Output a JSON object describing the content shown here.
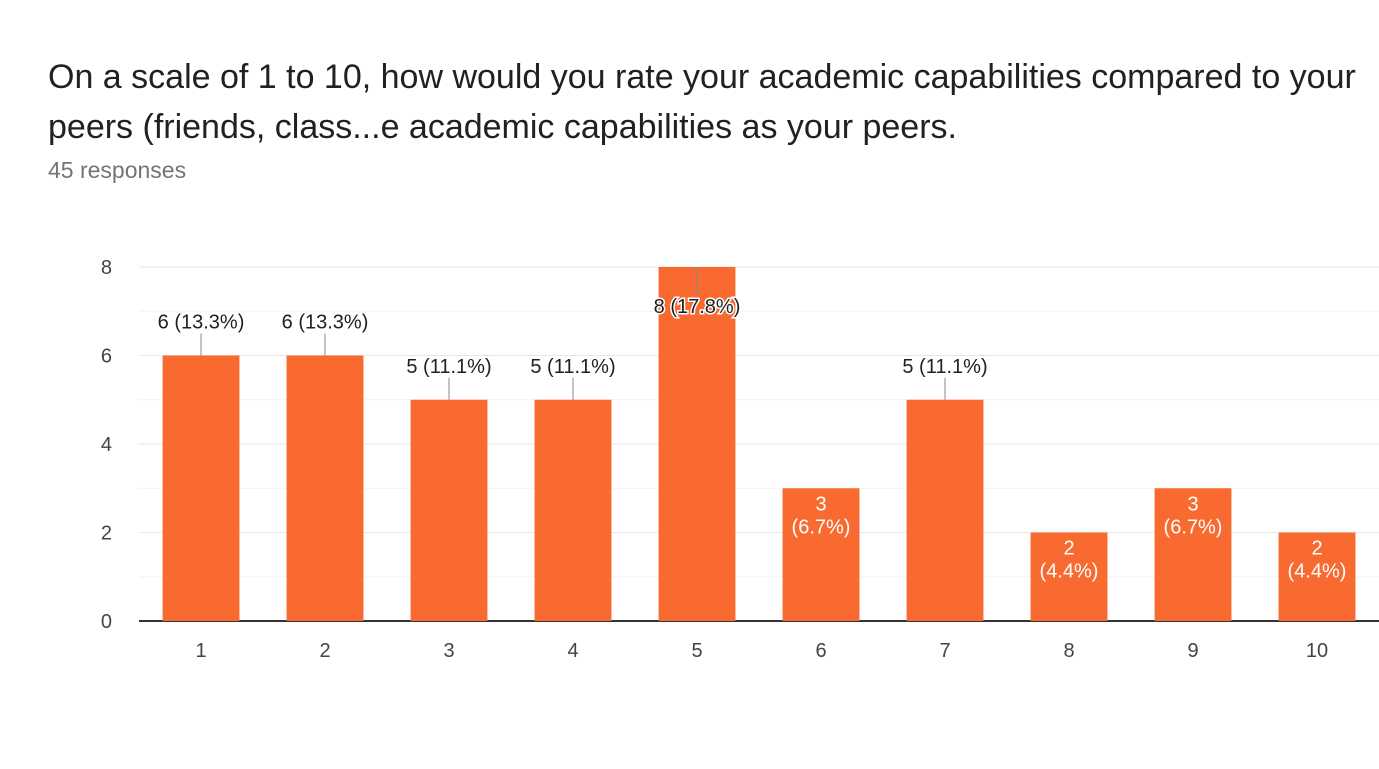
{
  "question": {
    "title": "On a scale of 1 to 10, how would you rate your academic capabilities compared to your peers (friends, class...e academic capabilities as your peers.",
    "responses_label": "45 responses"
  },
  "colors": {
    "bar": "#f86a2f",
    "label_outside": "#212121",
    "label_inside": "#ffffff",
    "axis_text": "#444444",
    "grid": "#e6e6e6",
    "baseline": "#333333",
    "leader": "#888888"
  },
  "chart_data": {
    "type": "bar",
    "title": "",
    "xlabel": "",
    "ylabel": "",
    "categories": [
      "1",
      "2",
      "3",
      "4",
      "5",
      "6",
      "7",
      "8",
      "9",
      "10"
    ],
    "values": [
      6,
      6,
      5,
      5,
      8,
      3,
      5,
      2,
      3,
      2
    ],
    "data_labels": [
      "6 (13.3%)",
      "6 (13.3%)",
      "5 (11.1%)",
      "5 (11.1%)",
      "8 (17.8%)",
      "3 (6.7%)",
      "5 (11.1%)",
      "2 (4.4%)",
      "3 (6.7%)",
      "2 (4.4%)"
    ],
    "ylim": [
      0,
      8
    ],
    "yticks": [
      "0",
      "2",
      "4",
      "6",
      "8"
    ],
    "grid": true,
    "legend": "none"
  }
}
